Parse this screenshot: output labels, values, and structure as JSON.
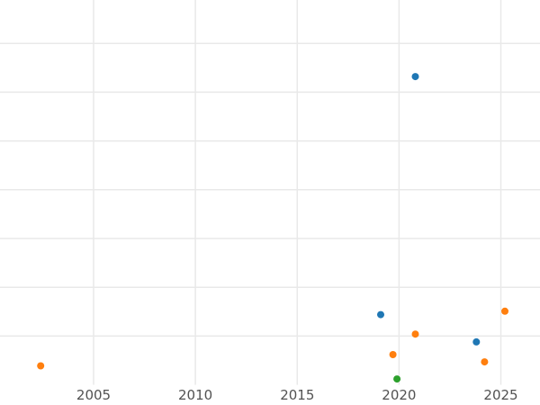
{
  "figure": {
    "background_color": "#ffffff",
    "gridline_color": "#e9e9e9",
    "tick_label_color": "#525252"
  },
  "chart_data": {
    "type": "scatter",
    "title": "",
    "xlabel": "",
    "ylabel": "",
    "grid": true,
    "legend": false,
    "marker_diameter_px": 8,
    "x_axis": {
      "tick_labels": [
        "2005",
        "2010",
        "2015",
        "2020",
        "2025"
      ],
      "tick_values": [
        2005,
        2010,
        2015,
        2020,
        2025
      ],
      "visible_range": [
        2000.4,
        2026.9
      ]
    },
    "y_axis": {
      "tick_labels": [],
      "gridline_values": [
        1,
        2,
        3,
        4,
        5,
        6,
        7
      ],
      "visible_range": [
        0,
        7.9
      ]
    },
    "series": [
      {
        "name": "blue",
        "color": "#1f77b4",
        "points": [
          {
            "x": 2019.1,
            "y": 1.44
          },
          {
            "x": 2020.8,
            "y": 6.32
          },
          {
            "x": 2023.8,
            "y": 0.88
          }
        ]
      },
      {
        "name": "orange",
        "color": "#ff7f0e",
        "points": [
          {
            "x": 2002.4,
            "y": 0.39
          },
          {
            "x": 2019.7,
            "y": 0.62
          },
          {
            "x": 2020.8,
            "y": 1.04
          },
          {
            "x": 2024.2,
            "y": 0.47
          },
          {
            "x": 2025.2,
            "y": 1.51
          }
        ]
      },
      {
        "name": "green",
        "color": "#2ca02c",
        "points": [
          {
            "x": 2019.9,
            "y": 0.12
          }
        ]
      }
    ]
  }
}
